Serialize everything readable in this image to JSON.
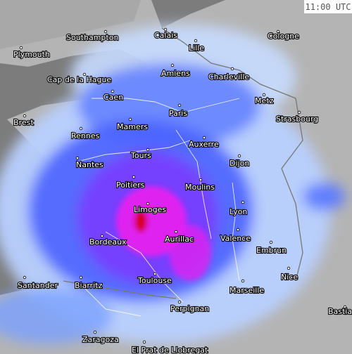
{
  "timestamp": "11:00 UTC",
  "cities": [
    {
      "name": "Southampton"
    },
    {
      "name": "Calais"
    },
    {
      "name": "Cologne"
    },
    {
      "name": "Plymouth"
    },
    {
      "name": "Lille"
    },
    {
      "name": "Amiens"
    },
    {
      "name": "Charleville"
    },
    {
      "name": "Cap de la Hague"
    },
    {
      "name": "Caen"
    },
    {
      "name": "Metz"
    },
    {
      "name": "Paris"
    },
    {
      "name": "Strasbourg"
    },
    {
      "name": "Brest"
    },
    {
      "name": "Mamers"
    },
    {
      "name": "Rennes"
    },
    {
      "name": "Auxerre"
    },
    {
      "name": "Tours"
    },
    {
      "name": "Nantes"
    },
    {
      "name": "Dijon"
    },
    {
      "name": "Poitiers"
    },
    {
      "name": "Moulins"
    },
    {
      "name": "Limoges"
    },
    {
      "name": "Lyon"
    },
    {
      "name": "Valence"
    },
    {
      "name": "Aurillac"
    },
    {
      "name": "Bordeaux"
    },
    {
      "name": "Embrun"
    },
    {
      "name": "Nice"
    },
    {
      "name": "Santander"
    },
    {
      "name": "Biarritz"
    },
    {
      "name": "Toulouse"
    },
    {
      "name": "Marseille"
    },
    {
      "name": "Perpignan"
    },
    {
      "name": "Bastia"
    },
    {
      "name": "Zaragoza"
    },
    {
      "name": "El Prat de Llobregat"
    }
  ]
}
